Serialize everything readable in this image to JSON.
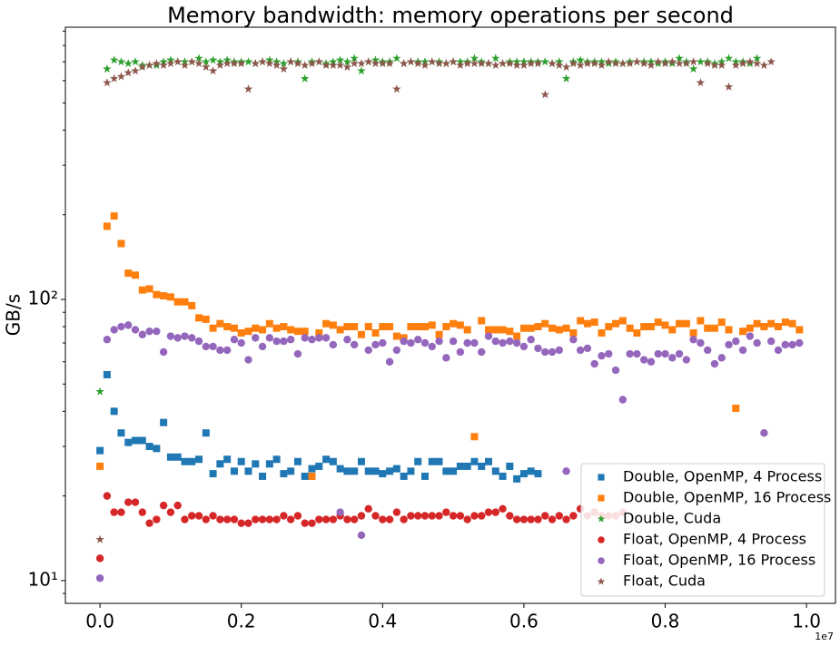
{
  "chart_data": {
    "type": "scatter",
    "title": "Memory bandwidth:  memory operations per second",
    "y_label": "GB/s",
    "x_offset_label": "1e7",
    "log_y": true,
    "legend_loc": "lower right",
    "xlim": [
      -490000,
      10410000
    ],
    "ylim": [
      8.3,
      929
    ],
    "xticks": [
      {
        "value": 0,
        "label": "0.0"
      },
      {
        "value": 2000000,
        "label": "0.2"
      },
      {
        "value": 4000000,
        "label": "0.4"
      },
      {
        "value": 6000000,
        "label": "0.6"
      },
      {
        "value": 8000000,
        "label": "0.8"
      },
      {
        "value": 10000000,
        "label": "1.0"
      }
    ],
    "yticks": [
      {
        "value": 10,
        "label": "10¹"
      },
      {
        "value": 100,
        "label": "10²"
      }
    ],
    "yminorticks": [
      9,
      20,
      30,
      40,
      50,
      60,
      70,
      80,
      90,
      200,
      300,
      400,
      500,
      600,
      700,
      800,
      900
    ],
    "x": [
      0,
      100000,
      200000,
      300000,
      400000,
      500000,
      600000,
      700000,
      800000,
      900000,
      1000000,
      1100000,
      1200000,
      1300000,
      1400000,
      1500000,
      1600000,
      1700000,
      1800000,
      1900000,
      2000000,
      2100000,
      2200000,
      2300000,
      2400000,
      2500000,
      2600000,
      2700000,
      2800000,
      2900000,
      3000000,
      3100000,
      3200000,
      3300000,
      3400000,
      3500000,
      3600000,
      3700000,
      3800000,
      3900000,
      4000000,
      4100000,
      4200000,
      4300000,
      4400000,
      4500000,
      4600000,
      4700000,
      4800000,
      4900000,
      5000000,
      5100000,
      5200000,
      5300000,
      5400000,
      5500000,
      5600000,
      5700000,
      5800000,
      5900000,
      6000000,
      6100000,
      6200000,
      6300000,
      6400000,
      6500000,
      6600000,
      6700000,
      6800000,
      6900000,
      7000000,
      7100000,
      7200000,
      7300000,
      7400000,
      7500000,
      7600000,
      7700000,
      7800000,
      7900000,
      8000000,
      8100000,
      8200000,
      8300000,
      8400000,
      8500000,
      8600000,
      8700000,
      8800000,
      8900000,
      9000000,
      9100000,
      9200000,
      9300000,
      9400000,
      9500000,
      9600000,
      9700000,
      9800000,
      9900000
    ],
    "series": [
      {
        "name": "Double, OpenMP, 4 Process",
        "color": "#1f77b4",
        "marker": "square",
        "values": [
          29,
          54,
          40,
          33.5,
          31,
          31.5,
          31.5,
          30,
          29.5,
          36.5,
          27.5,
          27.5,
          26.5,
          26.5,
          27,
          33.5,
          24,
          26,
          27,
          24.5,
          26.5,
          24.5,
          26,
          23.5,
          26,
          27,
          24,
          24.5,
          26.5,
          23.5,
          25,
          25.5,
          27,
          26.5,
          25,
          24.5,
          24.5,
          26.5,
          24.5,
          24.5,
          24,
          24.5,
          25,
          23.5,
          24.5,
          26.5,
          23.5,
          26.5,
          26.5,
          24.5,
          24.5,
          25.5,
          25.5,
          26.5,
          25.5,
          26.5,
          24.5,
          23.5,
          25.5,
          23,
          24,
          24.5,
          24,
          null,
          null,
          null,
          null,
          null,
          null,
          null,
          null,
          null,
          null,
          null,
          null,
          null,
          null,
          null,
          null,
          null,
          null,
          null,
          null,
          null,
          null,
          null,
          null,
          null,
          null,
          null,
          null,
          null,
          null,
          null,
          null,
          null,
          null,
          null,
          null,
          null
        ]
      },
      {
        "name": "Double, OpenMP, 16 Process",
        "color": "#ff7f0e",
        "marker": "square",
        "values": [
          25.5,
          182,
          198,
          158,
          124,
          122,
          108,
          109,
          104,
          103,
          102,
          98,
          98,
          95,
          86,
          85,
          79,
          82,
          80,
          79,
          76,
          77,
          79,
          78,
          82,
          79,
          80,
          78,
          77,
          77,
          23.5,
          76,
          82,
          81,
          78,
          80,
          80,
          75,
          80,
          76,
          80,
          80,
          74,
          73,
          80,
          80,
          80,
          81,
          75,
          80,
          82,
          81,
          78,
          32.5,
          84,
          78,
          78,
          78,
          77,
          74,
          79,
          79,
          80,
          82,
          79,
          78,
          79,
          76,
          84,
          82,
          83,
          76,
          80,
          82,
          84,
          79,
          76,
          80,
          80,
          83,
          81,
          78,
          82,
          82,
          76,
          84,
          79,
          79,
          83,
          78,
          41,
          77,
          79,
          82,
          80,
          82,
          80,
          83,
          82,
          78
        ]
      },
      {
        "name": "Double, Cuda",
        "color": "#2ca02c",
        "marker": "star",
        "values": [
          47,
          660,
          710,
          700,
          690,
          700,
          680,
          680,
          680,
          700,
          710,
          700,
          700,
          700,
          720,
          700,
          710,
          700,
          710,
          700,
          700,
          700,
          690,
          700,
          710,
          700,
          690,
          700,
          700,
          610,
          700,
          700,
          690,
          700,
          710,
          700,
          720,
          650,
          700,
          710,
          700,
          700,
          720,
          690,
          700,
          700,
          700,
          700,
          700,
          690,
          700,
          700,
          700,
          720,
          700,
          690,
          720,
          690,
          700,
          700,
          700,
          700,
          700,
          700,
          690,
          700,
          610,
          700,
          710,
          700,
          700,
          700,
          690,
          700,
          690,
          700,
          700,
          700,
          700,
          690,
          700,
          690,
          720,
          700,
          660,
          700,
          700,
          690,
          700,
          720,
          700,
          700,
          690,
          720,
          null,
          null,
          null,
          null,
          null,
          null
        ]
      },
      {
        "name": "Float, OpenMP, 4 Process",
        "color": "#d62728",
        "marker": "circle",
        "values": [
          12,
          20,
          17.5,
          17.5,
          19,
          19,
          17.5,
          16,
          16.5,
          18.5,
          17.5,
          18.5,
          16.5,
          17,
          17,
          16.5,
          17,
          16.5,
          16.5,
          16.5,
          16,
          16,
          16.5,
          16.5,
          16.5,
          16.5,
          17,
          16.5,
          17,
          16,
          16,
          16.5,
          16.5,
          16.5,
          17,
          16.5,
          16.5,
          17,
          18,
          17,
          16.5,
          16.5,
          17.5,
          16.5,
          17,
          17,
          17,
          17,
          17,
          17.5,
          17,
          17,
          16.5,
          17,
          17,
          17.5,
          17.5,
          18,
          17,
          16.5,
          16.5,
          16.5,
          16.5,
          17,
          16.5,
          17,
          16.5,
          17,
          18,
          17,
          17.5,
          17,
          17,
          17,
          17.5,
          null,
          null,
          null,
          null,
          null,
          null,
          null,
          null,
          null,
          null,
          null,
          null,
          null,
          null,
          null,
          null,
          null,
          null,
          null,
          null,
          null,
          null,
          null,
          null,
          null
        ]
      },
      {
        "name": "Float, OpenMP, 16 Process",
        "color": "#9467bd",
        "marker": "circle",
        "values": [
          10.2,
          72,
          78,
          80,
          81,
          78,
          75,
          77,
          77,
          65,
          74,
          73,
          74,
          73,
          71,
          68,
          68,
          66,
          66,
          72,
          70,
          61,
          73,
          68,
          73,
          71,
          71,
          72,
          64,
          73,
          72,
          73,
          73,
          69,
          17.5,
          72,
          69,
          14.5,
          66,
          69,
          70,
          60,
          66,
          71,
          70,
          72,
          70,
          68,
          71,
          62,
          71,
          65,
          70,
          70,
          65,
          74,
          71,
          70,
          71,
          70,
          68,
          72,
          67,
          65,
          65,
          66,
          24.5,
          72,
          66,
          67,
          59,
          63,
          64,
          56,
          44,
          64,
          64,
          61,
          60,
          64,
          64,
          62,
          64,
          61,
          72,
          70,
          66,
          59,
          62,
          69,
          71,
          66,
          74,
          70,
          33.5,
          71,
          66,
          69,
          69,
          70
        ]
      },
      {
        "name": "Float, Cuda",
        "color": "#8c564b",
        "marker": "star",
        "values": [
          14,
          590,
          610,
          620,
          640,
          650,
          670,
          680,
          690,
          680,
          690,
          700,
          680,
          700,
          690,
          670,
          650,
          680,
          690,
          690,
          690,
          560,
          690,
          700,
          690,
          680,
          660,
          700,
          690,
          680,
          690,
          700,
          680,
          680,
          680,
          670,
          690,
          690,
          700,
          690,
          690,
          690,
          560,
          690,
          700,
          690,
          680,
          700,
          690,
          690,
          700,
          680,
          690,
          690,
          690,
          690,
          680,
          690,
          690,
          680,
          680,
          690,
          690,
          535,
          690,
          680,
          670,
          690,
          680,
          690,
          690,
          680,
          700,
          690,
          690,
          690,
          700,
          690,
          680,
          700,
          690,
          700,
          690,
          690,
          700,
          590,
          690,
          680,
          680,
          570,
          680,
          690,
          700,
          690,
          680,
          700,
          null,
          null,
          null,
          null
        ]
      }
    ]
  }
}
